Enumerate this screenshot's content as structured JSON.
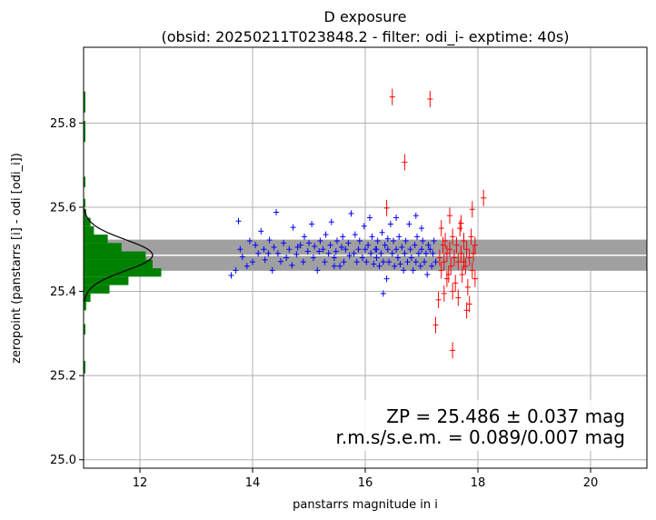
{
  "chart_data": {
    "type": "scatter",
    "title_line1": "D exposure",
    "title_line2": "(obsid: 20250211T023848.2 - filter: odi_i- exptime: 40s)",
    "xlabel": "panstarrs magnitude in i",
    "ylabel": "zeropoint (panstarrs [i] - odi [odi_i])",
    "xlim": [
      11.0,
      21.0
    ],
    "ylim": [
      24.98,
      25.98
    ],
    "xticks": [
      12,
      14,
      16,
      18,
      20
    ],
    "yticks": [
      25.0,
      25.2,
      25.4,
      25.6,
      25.8
    ],
    "xtick_labels": [
      "12",
      "14",
      "16",
      "18",
      "20"
    ],
    "ytick_labels": [
      "25.0",
      "25.2",
      "25.4",
      "25.6",
      "25.8"
    ],
    "grid": true,
    "zeropoint": 25.486,
    "zeropoint_band": [
      25.449,
      25.523
    ],
    "stats_line1": "ZP = 25.486 ± 0.037 mag",
    "stats_line2": "r.m.s/s.e.m. = 0.089/0.007 mag",
    "colors": {
      "good": "#0000ff",
      "faint": "#ff0000",
      "band": "#a0a0a0",
      "zp_line": "#ffffff",
      "histogram": "#008000",
      "gaussian": "#000000",
      "grid": "#b0b0b0"
    },
    "histogram": [
      {
        "y": 25.85,
        "height": 0.05,
        "count": 1
      },
      {
        "y": 25.78,
        "height": 0.05,
        "count": 1
      },
      {
        "y": 25.66,
        "height": 0.025,
        "count": 1
      },
      {
        "y": 25.61,
        "height": 0.02,
        "count": 1
      },
      {
        "y": 25.585,
        "height": 0.02,
        "count": 3
      },
      {
        "y": 25.565,
        "height": 0.02,
        "count": 8
      },
      {
        "y": 25.545,
        "height": 0.02,
        "count": 12
      },
      {
        "y": 25.525,
        "height": 0.02,
        "count": 28
      },
      {
        "y": 25.505,
        "height": 0.02,
        "count": 44
      },
      {
        "y": 25.485,
        "height": 0.02,
        "count": 72
      },
      {
        "y": 25.465,
        "height": 0.02,
        "count": 80
      },
      {
        "y": 25.445,
        "height": 0.02,
        "count": 90
      },
      {
        "y": 25.425,
        "height": 0.02,
        "count": 52
      },
      {
        "y": 25.405,
        "height": 0.02,
        "count": 30
      },
      {
        "y": 25.385,
        "height": 0.02,
        "count": 8
      },
      {
        "y": 25.365,
        "height": 0.02,
        "count": 3
      },
      {
        "y": 25.31,
        "height": 0.025,
        "count": 1
      },
      {
        "y": 25.22,
        "height": 0.03,
        "count": 1
      }
    ],
    "gaussian": {
      "mu": 25.486,
      "sigma": 0.037,
      "peak_count": 80
    },
    "series": [
      {
        "points": [
          [
            13.62,
            25.438
          ],
          [
            13.7,
            25.45
          ],
          [
            13.75,
            25.567
          ],
          [
            13.78,
            25.5
          ],
          [
            13.82,
            25.482
          ],
          [
            13.9,
            25.46
          ],
          [
            13.95,
            25.52
          ],
          [
            14.0,
            25.47
          ],
          [
            14.05,
            25.51
          ],
          [
            14.1,
            25.49
          ],
          [
            14.15,
            25.543
          ],
          [
            14.2,
            25.5
          ],
          [
            14.22,
            25.475
          ],
          [
            14.28,
            25.49
          ],
          [
            14.3,
            25.522
          ],
          [
            14.35,
            25.45
          ],
          [
            14.38,
            25.505
          ],
          [
            14.42,
            25.588
          ],
          [
            14.45,
            25.49
          ],
          [
            14.5,
            25.471
          ],
          [
            14.55,
            25.515
          ],
          [
            14.6,
            25.48
          ],
          [
            14.65,
            25.5
          ],
          [
            14.7,
            25.462
          ],
          [
            14.72,
            25.552
          ],
          [
            14.78,
            25.488
          ],
          [
            14.8,
            25.505
          ],
          [
            14.85,
            25.51
          ],
          [
            14.9,
            25.47
          ],
          [
            14.92,
            25.53
          ],
          [
            14.98,
            25.495
          ],
          [
            15.0,
            25.515
          ],
          [
            15.05,
            25.56
          ],
          [
            15.08,
            25.48
          ],
          [
            15.1,
            25.507
          ],
          [
            15.15,
            25.45
          ],
          [
            15.18,
            25.495
          ],
          [
            15.2,
            25.52
          ],
          [
            15.25,
            25.5
          ],
          [
            15.28,
            25.47
          ],
          [
            15.3,
            25.535
          ],
          [
            15.35,
            25.49
          ],
          [
            15.38,
            25.51
          ],
          [
            15.4,
            25.565
          ],
          [
            15.45,
            25.48
          ],
          [
            15.48,
            25.495
          ],
          [
            15.5,
            25.52
          ],
          [
            15.55,
            25.46
          ],
          [
            15.58,
            25.505
          ],
          [
            15.6,
            25.53
          ],
          [
            15.62,
            25.47
          ],
          [
            15.65,
            25.5
          ],
          [
            15.7,
            25.515
          ],
          [
            15.72,
            25.485
          ],
          [
            15.75,
            25.585
          ],
          [
            15.8,
            25.49
          ],
          [
            15.82,
            25.535
          ],
          [
            15.85,
            25.47
          ],
          [
            15.88,
            25.5
          ],
          [
            15.9,
            25.52
          ],
          [
            15.95,
            25.48
          ],
          [
            15.98,
            25.555
          ],
          [
            16.0,
            25.5
          ],
          [
            16.02,
            25.47
          ],
          [
            16.05,
            25.51
          ],
          [
            16.08,
            25.575
          ],
          [
            16.1,
            25.49
          ],
          [
            16.12,
            25.53
          ],
          [
            16.15,
            25.465
          ],
          [
            16.18,
            25.5
          ],
          [
            16.2,
            25.48
          ],
          [
            16.22,
            25.52
          ],
          [
            16.25,
            25.46
          ],
          [
            16.28,
            25.49
          ],
          [
            16.3,
            25.54
          ],
          [
            16.32,
            25.47
          ],
          [
            16.35,
            25.51
          ],
          [
            16.38,
            25.43
          ],
          [
            16.4,
            25.5
          ],
          [
            16.42,
            25.47
          ],
          [
            16.45,
            25.56
          ],
          [
            16.48,
            25.49
          ],
          [
            16.5,
            25.52
          ],
          [
            16.52,
            25.46
          ],
          [
            16.55,
            25.5
          ],
          [
            16.58,
            25.48
          ],
          [
            16.6,
            25.53
          ],
          [
            16.62,
            25.465
          ],
          [
            16.65,
            25.505
          ],
          [
            16.68,
            25.45
          ],
          [
            16.7,
            25.49
          ],
          [
            16.72,
            25.52
          ],
          [
            16.75,
            25.47
          ],
          [
            16.78,
            25.56
          ],
          [
            16.8,
            25.5
          ],
          [
            16.82,
            25.48
          ],
          [
            16.85,
            25.45
          ],
          [
            16.88,
            25.51
          ],
          [
            16.9,
            25.47
          ],
          [
            16.92,
            25.53
          ],
          [
            16.95,
            25.49
          ],
          [
            16.98,
            25.46
          ],
          [
            17.0,
            25.5
          ],
          [
            17.02,
            25.52
          ],
          [
            17.05,
            25.47
          ],
          [
            17.08,
            25.49
          ],
          [
            17.1,
            25.44
          ],
          [
            17.12,
            25.51
          ],
          [
            17.15,
            25.5
          ],
          [
            17.18,
            25.46
          ],
          [
            17.2,
            25.49
          ],
          [
            17.22,
            25.52
          ],
          [
            17.25,
            25.47
          ],
          [
            16.32,
            25.395
          ],
          [
            16.4,
            25.525
          ],
          [
            16.55,
            25.575
          ],
          [
            16.9,
            25.58
          ],
          [
            17.0,
            25.55
          ],
          [
            15.45,
            25.46
          ],
          [
            16.2,
            25.5
          ]
        ]
      },
      {
        "points": [
          [
            16.48,
            25.862
          ],
          [
            17.15,
            25.857
          ],
          [
            16.7,
            25.707
          ],
          [
            16.38,
            25.598
          ],
          [
            18.1,
            25.622
          ],
          [
            17.9,
            25.595
          ],
          [
            17.7,
            25.562
          ],
          [
            17.5,
            25.58
          ],
          [
            17.25,
            25.32
          ],
          [
            17.55,
            25.26
          ],
          [
            17.8,
            25.355
          ],
          [
            17.3,
            25.38
          ],
          [
            17.32,
            25.48
          ],
          [
            17.35,
            25.45
          ],
          [
            17.38,
            25.51
          ],
          [
            17.4,
            25.47
          ],
          [
            17.42,
            25.52
          ],
          [
            17.45,
            25.49
          ],
          [
            17.48,
            25.44
          ],
          [
            17.5,
            25.5
          ],
          [
            17.52,
            25.46
          ],
          [
            17.55,
            25.53
          ],
          [
            17.58,
            25.48
          ],
          [
            17.6,
            25.42
          ],
          [
            17.62,
            25.51
          ],
          [
            17.65,
            25.47
          ],
          [
            17.68,
            25.55
          ],
          [
            17.7,
            25.49
          ],
          [
            17.72,
            25.44
          ],
          [
            17.75,
            25.52
          ],
          [
            17.78,
            25.46
          ],
          [
            17.8,
            25.5
          ],
          [
            17.82,
            25.41
          ],
          [
            17.85,
            25.48
          ],
          [
            17.88,
            25.53
          ],
          [
            17.9,
            25.45
          ],
          [
            17.92,
            25.49
          ],
          [
            17.95,
            25.43
          ],
          [
            17.4,
            25.395
          ],
          [
            17.55,
            25.4
          ],
          [
            17.65,
            25.385
          ],
          [
            17.85,
            25.37
          ],
          [
            17.95,
            25.51
          ],
          [
            17.35,
            25.55
          ],
          [
            17.45,
            25.43
          ],
          [
            17.75,
            25.47
          ]
        ]
      }
    ]
  }
}
